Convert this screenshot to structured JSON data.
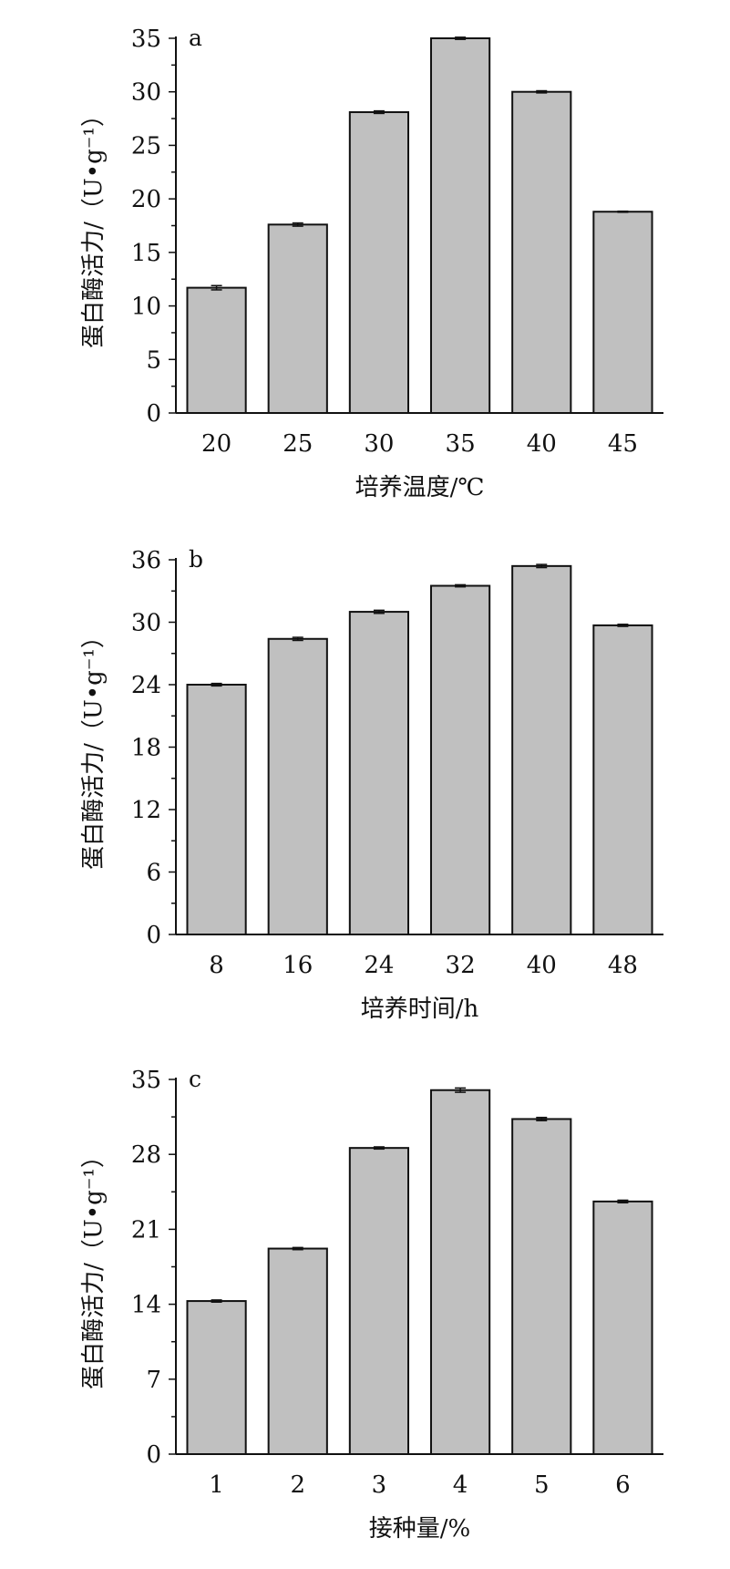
{
  "chart_data": [
    {
      "type": "bar",
      "panel": "a",
      "categories": [
        "20",
        "25",
        "30",
        "35",
        "40",
        "45"
      ],
      "values": [
        11.7,
        17.6,
        28.1,
        35.0,
        30.0,
        18.8
      ],
      "errors": [
        0.2,
        0.15,
        0.12,
        0.1,
        0.1,
        0.05
      ],
      "xlabel": "培养温度/℃",
      "ylabel": "蛋白酶活力/（U•g⁻¹）",
      "ylim": [
        0,
        35
      ],
      "yticks": [
        0,
        5,
        10,
        15,
        20,
        25,
        30,
        35
      ],
      "minor_y": 2.5
    },
    {
      "type": "bar",
      "panel": "b",
      "categories": [
        "8",
        "16",
        "24",
        "32",
        "40",
        "48"
      ],
      "values": [
        24.0,
        28.4,
        31.0,
        33.5,
        35.4,
        29.7
      ],
      "errors": [
        0.12,
        0.15,
        0.15,
        0.1,
        0.15,
        0.1
      ],
      "xlabel": "培养时间/h",
      "ylabel": "蛋白酶活力/（U•g⁻¹）",
      "ylim": [
        0,
        36
      ],
      "yticks": [
        0,
        6,
        12,
        18,
        24,
        30,
        36
      ],
      "minor_y": 3
    },
    {
      "type": "bar",
      "panel": "c",
      "categories": [
        "1",
        "2",
        "3",
        "4",
        "5",
        "6"
      ],
      "values": [
        14.3,
        19.2,
        28.6,
        34.0,
        31.3,
        23.6
      ],
      "errors": [
        0.1,
        0.1,
        0.1,
        0.2,
        0.15,
        0.12
      ],
      "xlabel": "接种量/%",
      "ylabel": "蛋白酶活力/（U•g⁻¹）",
      "ylim": [
        0,
        35
      ],
      "yticks": [
        0,
        7,
        14,
        21,
        28,
        35
      ],
      "minor_y": 3.5
    }
  ]
}
